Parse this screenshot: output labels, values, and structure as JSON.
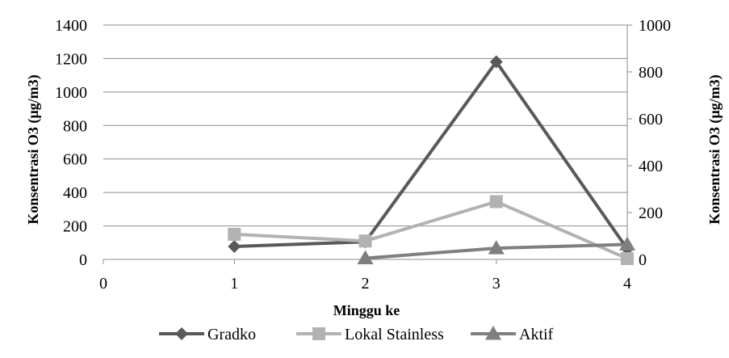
{
  "chart_data": {
    "type": "line",
    "xlabel": "Minggu ke",
    "ylabel_left": "Konsentrasi O3 (µg/m3)",
    "ylabel_right": "Konsentrasi O3 (µg/m3)",
    "xlim": [
      0,
      4
    ],
    "xticks": [
      0,
      1,
      2,
      3,
      4
    ],
    "ylim_left": [
      0,
      1400
    ],
    "yticks_left": [
      0,
      200,
      400,
      600,
      800,
      1000,
      1200,
      1400
    ],
    "ylim_right": [
      0,
      1000
    ],
    "yticks_right": [
      0,
      200,
      400,
      600,
      800,
      1000
    ],
    "grid": "horizontal",
    "legend_position": "bottom",
    "series": [
      {
        "name": "Gradko",
        "axis": "right",
        "marker": "diamond",
        "color": "#595959",
        "x": [
          1,
          2,
          3,
          4
        ],
        "y": [
          55,
          75,
          843,
          45
        ]
      },
      {
        "name": "Lokal Stainless",
        "axis": "left",
        "marker": "square",
        "color": "#b2b2b2",
        "x": [
          1,
          2,
          3,
          4
        ],
        "y": [
          150,
          110,
          345,
          5
        ]
      },
      {
        "name": "Aktif",
        "axis": "right",
        "marker": "triangle",
        "color": "#7f7f7f",
        "x": [
          2,
          3,
          4
        ],
        "y": [
          5,
          48,
          64
        ]
      }
    ]
  }
}
